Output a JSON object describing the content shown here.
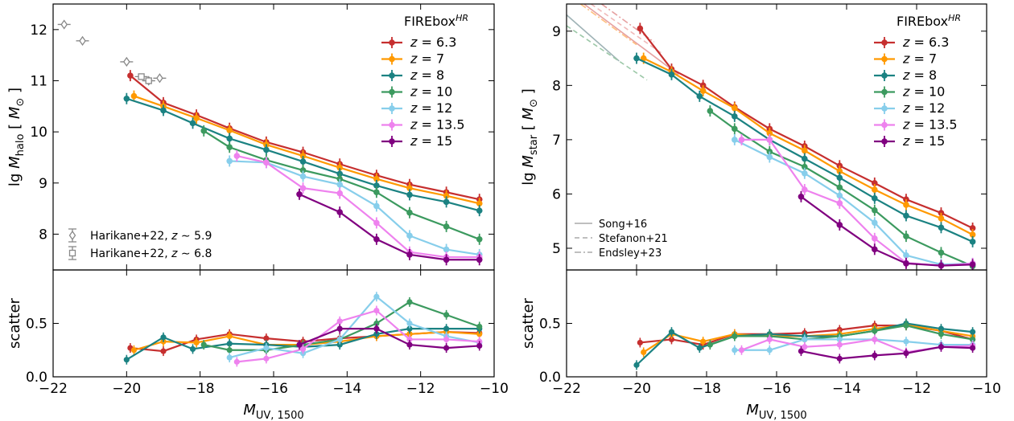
{
  "chart_data": [
    {
      "type": "line",
      "title": "",
      "xlabel": "M_UV,1500",
      "ylabel": "lg M_halo [ M_⊙ ]",
      "xlim": [
        -22,
        -10
      ],
      "ylim": [
        7.3,
        12.5
      ],
      "xticks": [
        -22,
        -20,
        -18,
        -16,
        -14,
        -12,
        -10
      ],
      "yticks": [
        8,
        9,
        10,
        11,
        12
      ],
      "legend_title": "FIREbox^HR",
      "legend_position": "top-right",
      "series": [
        {
          "name": "z = 6.3",
          "color": "#c62f2f",
          "x": [
            -19.9,
            -19.0,
            -18.1,
            -17.2,
            -16.2,
            -15.2,
            -14.2,
            -13.2,
            -12.3,
            -11.3,
            -10.4
          ],
          "y": [
            11.1,
            10.57,
            10.33,
            10.07,
            9.8,
            9.6,
            9.37,
            9.15,
            8.97,
            8.82,
            8.68
          ]
        },
        {
          "name": "z = 7",
          "color": "#ff9900",
          "x": [
            -19.8,
            -19.0,
            -18.1,
            -17.2,
            -16.2,
            -15.2,
            -14.2,
            -13.2,
            -12.3,
            -11.3,
            -10.4
          ],
          "y": [
            10.7,
            10.5,
            10.27,
            10.03,
            9.75,
            9.53,
            9.3,
            9.08,
            8.9,
            8.75,
            8.6
          ]
        },
        {
          "name": "z = 8",
          "color": "#1b8282",
          "x": [
            -20.0,
            -19.0,
            -18.2,
            -17.2,
            -16.2,
            -15.2,
            -14.2,
            -13.2,
            -12.3,
            -11.3,
            -10.4
          ],
          "y": [
            10.65,
            10.42,
            10.17,
            9.87,
            9.65,
            9.42,
            9.18,
            8.95,
            8.77,
            8.63,
            8.46
          ]
        },
        {
          "name": "z = 10",
          "color": "#3c9a5f",
          "x": [
            -17.9,
            -17.2,
            -16.2,
            -15.2,
            -14.2,
            -13.2,
            -12.3,
            -11.3,
            -10.4
          ],
          "y": [
            10.02,
            9.7,
            9.45,
            9.25,
            9.08,
            8.82,
            8.42,
            8.15,
            7.9
          ]
        },
        {
          "name": "z = 12",
          "color": "#87ceeb",
          "x": [
            -17.2,
            -16.2,
            -15.2,
            -14.2,
            -13.2,
            -12.3,
            -11.3,
            -10.4
          ],
          "y": [
            9.43,
            9.4,
            9.13,
            8.97,
            8.55,
            7.97,
            7.7,
            7.6
          ]
        },
        {
          "name": "z = 13.5",
          "color": "#ee82ee",
          "x": [
            -17.0,
            -16.2,
            -15.2,
            -14.2,
            -13.2,
            -12.3,
            -11.3,
            -10.4
          ],
          "y": [
            9.53,
            9.4,
            8.9,
            8.8,
            8.22,
            7.65,
            7.55,
            7.55
          ]
        },
        {
          "name": "z = 15",
          "color": "#800080",
          "x": [
            -15.3,
            -14.2,
            -13.2,
            -12.3,
            -11.3,
            -10.4
          ],
          "y": [
            8.78,
            8.43,
            7.9,
            7.6,
            7.5,
            7.5
          ]
        }
      ],
      "observations": [
        {
          "name": "Harikane+22, z ~ 5.9",
          "marker": "diamond",
          "x": [
            -21.7,
            -21.2,
            -20.0,
            -19.4,
            -19.1
          ],
          "y": [
            12.1,
            11.78,
            11.37,
            11.0,
            11.05
          ]
        },
        {
          "name": "Harikane+22, z ~ 6.8",
          "marker": "square",
          "x": [
            -19.6,
            -19.4
          ],
          "y": [
            11.08,
            11.0
          ]
        }
      ],
      "scatter_panel": {
        "ylabel": "scatter",
        "ylim": [
          0,
          1.0
        ],
        "yticks": [
          0.0,
          0.5
        ],
        "series": [
          {
            "name": "z = 6.3",
            "x": [
              -19.9,
              -19.0,
              -18.1,
              -17.2,
              -16.2,
              -15.2,
              -14.2,
              -13.2,
              -12.3,
              -11.3,
              -10.4
            ],
            "y": [
              0.27,
              0.24,
              0.35,
              0.4,
              0.36,
              0.33,
              0.36,
              0.38,
              0.4,
              0.42,
              0.41
            ]
          },
          {
            "name": "z = 7",
            "x": [
              -19.8,
              -19.0,
              -18.1,
              -17.2,
              -16.2,
              -15.2,
              -14.2,
              -13.2,
              -12.3,
              -11.3,
              -10.4
            ],
            "y": [
              0.25,
              0.33,
              0.32,
              0.38,
              0.3,
              0.3,
              0.33,
              0.38,
              0.4,
              0.42,
              0.4
            ]
          },
          {
            "name": "z = 8",
            "x": [
              -20.0,
              -19.0,
              -18.2,
              -17.2,
              -16.2,
              -15.2,
              -14.2,
              -13.2,
              -12.3,
              -11.3,
              -10.4
            ],
            "y": [
              0.16,
              0.37,
              0.26,
              0.31,
              0.3,
              0.28,
              0.3,
              0.4,
              0.45,
              0.45,
              0.45
            ]
          },
          {
            "name": "z = 10",
            "x": [
              -17.9,
              -17.2,
              -16.2,
              -15.2,
              -14.2,
              -13.2,
              -12.3,
              -11.3,
              -10.4
            ],
            "y": [
              0.3,
              0.25,
              0.25,
              0.3,
              0.35,
              0.5,
              0.7,
              0.58,
              0.47
            ]
          },
          {
            "name": "z = 12",
            "x": [
              -17.2,
              -16.2,
              -15.2,
              -14.2,
              -13.2,
              -12.3,
              -11.3,
              -10.4
            ],
            "y": [
              0.18,
              0.27,
              0.22,
              0.35,
              0.75,
              0.5,
              0.38,
              0.32
            ]
          },
          {
            "name": "z = 13.5",
            "x": [
              -17.0,
              -16.2,
              -15.2,
              -14.2,
              -13.2,
              -12.3,
              -11.3,
              -10.4
            ],
            "y": [
              0.14,
              0.17,
              0.26,
              0.52,
              0.62,
              0.35,
              0.35,
              0.33
            ]
          },
          {
            "name": "z = 15",
            "x": [
              -15.3,
              -14.2,
              -13.2,
              -12.3,
              -11.3,
              -10.4
            ],
            "y": [
              0.3,
              0.45,
              0.45,
              0.3,
              0.27,
              0.29
            ]
          }
        ]
      }
    },
    {
      "type": "line",
      "title": "",
      "xlabel": "M_UV,1500",
      "ylabel": "lg M_star [ M_⊙ ]",
      "xlim": [
        -22,
        -10
      ],
      "ylim": [
        4.6,
        9.5
      ],
      "xticks": [
        -22,
        -20,
        -18,
        -16,
        -14,
        -12,
        -10
      ],
      "yticks": [
        5,
        6,
        7,
        8,
        9
      ],
      "legend_title": "FIREbox^HR",
      "legend_position": "top-right",
      "series": [
        {
          "name": "z = 6.3",
          "color": "#c62f2f",
          "x": [
            -19.9,
            -19.0,
            -18.1,
            -17.2,
            -16.2,
            -15.2,
            -14.2,
            -13.2,
            -12.3,
            -11.3,
            -10.4
          ],
          "y": [
            9.05,
            8.3,
            8.0,
            7.6,
            7.2,
            6.88,
            6.52,
            6.2,
            5.9,
            5.65,
            5.37
          ]
        },
        {
          "name": "z = 7",
          "color": "#ff9900",
          "x": [
            -19.8,
            -19.0,
            -18.1,
            -17.2,
            -16.2,
            -15.2,
            -14.2,
            -13.2,
            -12.3,
            -11.3,
            -10.4
          ],
          "y": [
            8.5,
            8.25,
            7.9,
            7.58,
            7.12,
            6.8,
            6.42,
            6.08,
            5.8,
            5.55,
            5.25
          ]
        },
        {
          "name": "z = 8",
          "color": "#1b8282",
          "x": [
            -20.0,
            -19.0,
            -18.2,
            -17.2,
            -16.2,
            -15.2,
            -14.2,
            -13.2,
            -12.3,
            -11.3,
            -10.4
          ],
          "y": [
            8.5,
            8.2,
            7.8,
            7.43,
            7.0,
            6.65,
            6.3,
            5.92,
            5.6,
            5.38,
            5.12
          ]
        },
        {
          "name": "z = 10",
          "color": "#3c9a5f",
          "x": [
            -17.9,
            -17.2,
            -16.2,
            -15.2,
            -14.2,
            -13.2,
            -12.3,
            -11.3,
            -10.4
          ],
          "y": [
            7.53,
            7.2,
            6.78,
            6.5,
            6.12,
            5.7,
            5.22,
            4.92,
            4.67
          ]
        },
        {
          "name": "z = 12",
          "color": "#87ceeb",
          "x": [
            -17.2,
            -16.2,
            -15.2,
            -14.2,
            -13.2,
            -12.3,
            -11.3,
            -10.4
          ],
          "y": [
            7.0,
            6.68,
            6.38,
            5.97,
            5.47,
            4.87,
            4.7,
            4.72
          ]
        },
        {
          "name": "z = 13.5",
          "color": "#ee82ee",
          "x": [
            -17.0,
            -16.2,
            -15.2,
            -14.2,
            -13.2,
            -12.3,
            -11.3,
            -10.4
          ],
          "y": [
            7.0,
            7.0,
            6.08,
            5.83,
            5.18,
            4.73,
            4.68,
            4.72
          ]
        },
        {
          "name": "z = 15",
          "color": "#800080",
          "x": [
            -15.3,
            -14.2,
            -13.2,
            -12.3,
            -11.3,
            -10.4
          ],
          "y": [
            5.95,
            5.43,
            4.98,
            4.72,
            4.68,
            4.7
          ]
        }
      ],
      "reference_lines": [
        {
          "name": "Song+16",
          "style": "solid",
          "color": "#9fb3b6",
          "x": [
            -22,
            -20.5
          ],
          "y": [
            9.3,
            8.45
          ]
        },
        {
          "name": "Song+16",
          "style": "solid",
          "color": "#e6a1a1",
          "x": [
            -21.5,
            -18.8
          ],
          "y": [
            9.5,
            8.2
          ]
        },
        {
          "name": "Stefanon+21",
          "style": "dashed",
          "color": "#9cc8a8",
          "x": [
            -22,
            -19.7
          ],
          "y": [
            9.1,
            8.1
          ]
        },
        {
          "name": "Stefanon+21",
          "style": "dashed",
          "color": "#f0b9b9",
          "x": [
            -21.3,
            -19.3
          ],
          "y": [
            9.5,
            8.6
          ]
        },
        {
          "name": "Endsley+23",
          "style": "dashdot",
          "color": "#e6a1a1",
          "x": [
            -21.0,
            -19.5
          ],
          "y": [
            9.5,
            8.8
          ]
        },
        {
          "name": "Endsley+23",
          "style": "dashdot",
          "color": "#ffc080",
          "x": [
            -21.6,
            -20.0
          ],
          "y": [
            9.5,
            8.75
          ]
        }
      ],
      "reference_legend": [
        "Song+16",
        "Stefanon+21",
        "Endsley+23"
      ],
      "scatter_panel": {
        "ylabel": "scatter",
        "ylim": [
          0,
          1.0
        ],
        "yticks": [
          0.0,
          0.5
        ],
        "series": [
          {
            "name": "z = 6.3",
            "x": [
              -19.9,
              -19.0,
              -18.1,
              -17.2,
              -16.2,
              -15.2,
              -14.2,
              -13.2,
              -12.3,
              -11.3,
              -10.4
            ],
            "y": [
              0.32,
              0.35,
              0.3,
              0.4,
              0.4,
              0.41,
              0.44,
              0.48,
              0.48,
              0.43,
              0.35
            ]
          },
          {
            "name": "z = 7",
            "x": [
              -19.8,
              -19.0,
              -18.1,
              -17.2,
              -16.2,
              -15.2,
              -14.2,
              -13.2,
              -12.3,
              -11.3,
              -10.4
            ],
            "y": [
              0.23,
              0.4,
              0.33,
              0.4,
              0.38,
              0.38,
              0.4,
              0.45,
              0.49,
              0.43,
              0.38
            ]
          },
          {
            "name": "z = 8",
            "x": [
              -20.0,
              -19.0,
              -18.2,
              -17.2,
              -16.2,
              -15.2,
              -14.2,
              -13.2,
              -12.3,
              -11.3,
              -10.4
            ],
            "y": [
              0.11,
              0.42,
              0.27,
              0.38,
              0.4,
              0.38,
              0.38,
              0.43,
              0.5,
              0.45,
              0.42
            ]
          },
          {
            "name": "z = 10",
            "x": [
              -17.9,
              -17.2,
              -16.2,
              -15.2,
              -14.2,
              -13.2,
              -12.3,
              -11.3,
              -10.4
            ],
            "y": [
              0.3,
              0.38,
              0.38,
              0.35,
              0.38,
              0.43,
              0.48,
              0.4,
              0.35
            ]
          },
          {
            "name": "z = 12",
            "x": [
              -17.2,
              -16.2,
              -15.2,
              -14.2,
              -13.2,
              -12.3,
              -11.3,
              -10.4
            ],
            "y": [
              0.25,
              0.25,
              0.35,
              0.35,
              0.35,
              0.33,
              0.3,
              0.3
            ]
          },
          {
            "name": "z = 13.5",
            "x": [
              -17.0,
              -16.2,
              -15.2,
              -14.2,
              -13.2,
              -12.3,
              -11.3,
              -10.4
            ],
            "y": [
              0.25,
              0.35,
              0.28,
              0.3,
              0.35,
              0.23,
              0.28,
              0.29
            ]
          },
          {
            "name": "z = 15",
            "x": [
              -15.3,
              -14.2,
              -13.2,
              -12.3,
              -11.3,
              -10.4
            ],
            "y": [
              0.24,
              0.17,
              0.2,
              0.22,
              0.28,
              0.27
            ]
          }
        ]
      }
    }
  ]
}
